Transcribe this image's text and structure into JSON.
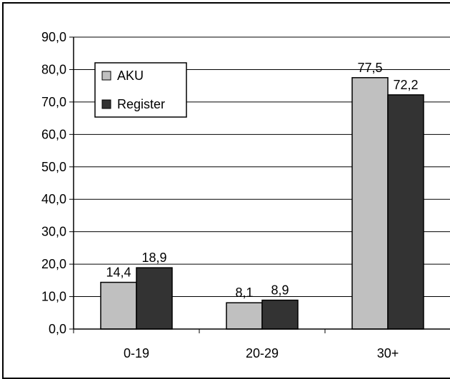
{
  "chart_data": {
    "type": "bar",
    "categories": [
      "0-19",
      "20-29",
      "30+"
    ],
    "series": [
      {
        "name": "AKU",
        "values": [
          14.4,
          8.1,
          77.5
        ],
        "labels": [
          "14,4",
          "8,1",
          "77,5"
        ],
        "color": "#c0c0c0"
      },
      {
        "name": "Register",
        "values": [
          18.9,
          8.9,
          72.2
        ],
        "labels": [
          "18,9",
          "8,9",
          "72,2"
        ],
        "color": "#333333"
      }
    ],
    "y_ticks": [
      "0,0",
      "10,0",
      "20,0",
      "30,0",
      "40,0",
      "50,0",
      "60,0",
      "70,0",
      "80,0",
      "90,0"
    ],
    "ylim": [
      0,
      90
    ],
    "grid": true,
    "legend_position": "top-left"
  }
}
